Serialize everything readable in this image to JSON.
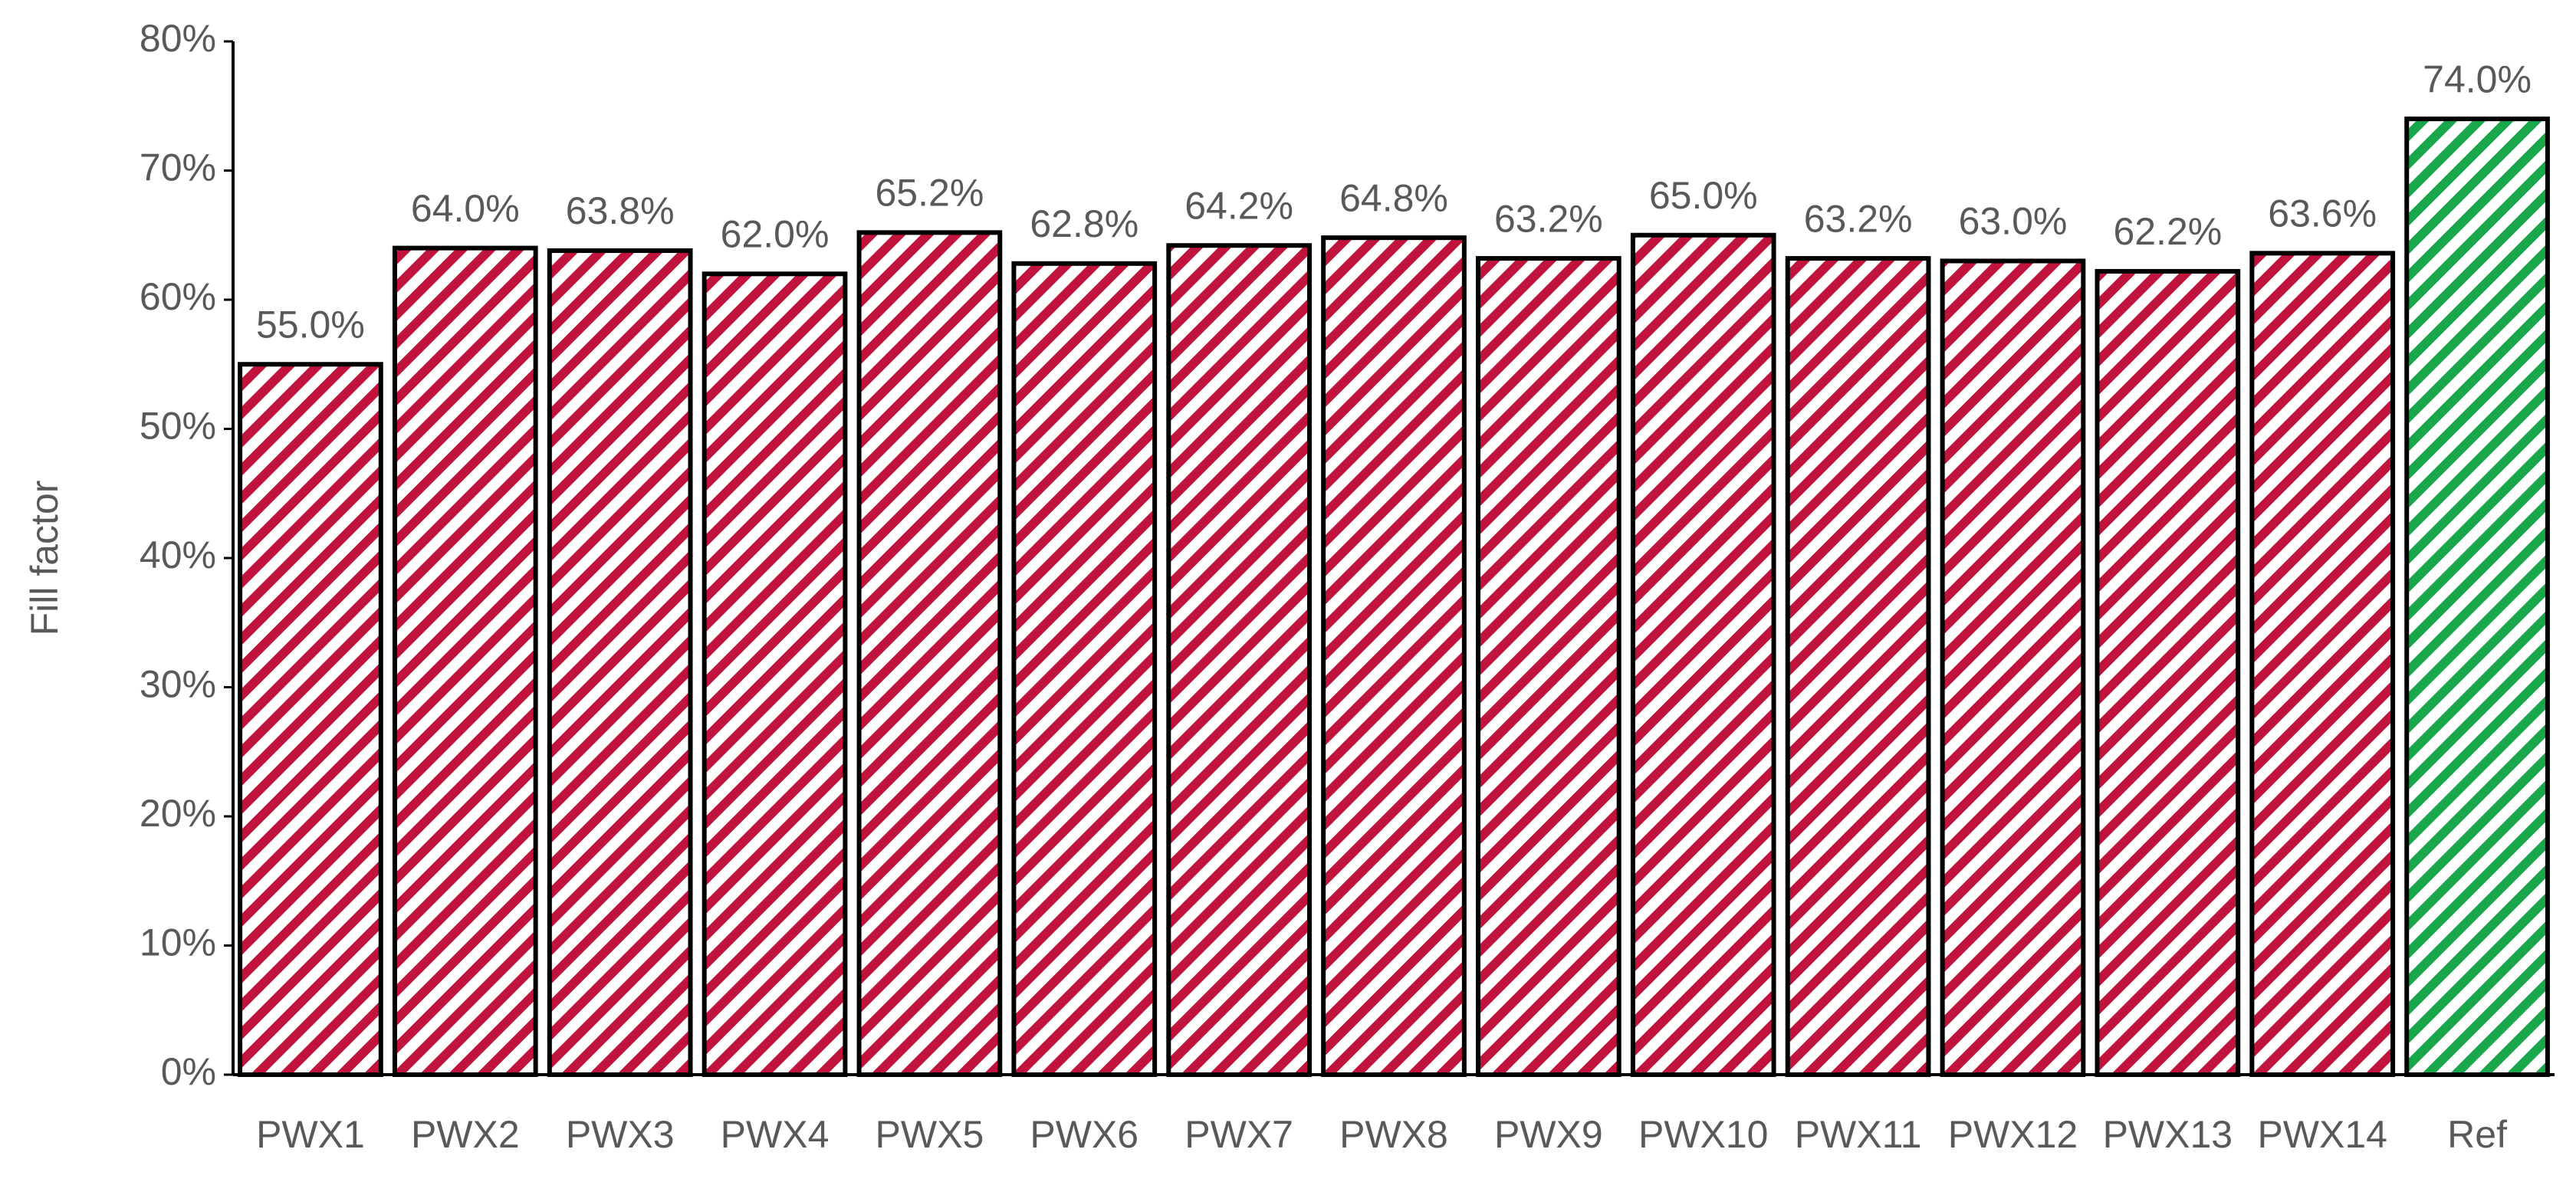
{
  "chart_data": {
    "type": "bar",
    "y_label": "Fill factor",
    "categories": [
      "PWX1",
      "PWX2",
      "PWX3",
      "PWX4",
      "PWX5",
      "PWX6",
      "PWX7",
      "PWX8",
      "PWX9",
      "PWX10",
      "PWX11",
      "PWX12",
      "PWX13",
      "PWX14",
      "Ref"
    ],
    "values": [
      55.0,
      64.0,
      63.8,
      62.0,
      65.2,
      62.8,
      64.2,
      64.8,
      63.2,
      65.0,
      63.2,
      63.0,
      62.2,
      63.6,
      74.0
    ],
    "value_labels": [
      "55.0%",
      "64.0%",
      "63.8%",
      "62.0%",
      "65.2%",
      "62.8%",
      "64.2%",
      "64.8%",
      "63.2%",
      "65.0%",
      "63.2%",
      "63.0%",
      "62.2%",
      "63.6%",
      "74.0%"
    ],
    "colors": [
      "#c0143c",
      "#c0143c",
      "#c0143c",
      "#c0143c",
      "#c0143c",
      "#c0143c",
      "#c0143c",
      "#c0143c",
      "#c0143c",
      "#c0143c",
      "#c0143c",
      "#c0143c",
      "#c0143c",
      "#c0143c",
      "#1aa64b"
    ],
    "ylim": [
      0,
      80
    ],
    "yticks": [
      {
        "value": 0,
        "label": "0%"
      },
      {
        "value": 10,
        "label": "10%"
      },
      {
        "value": 20,
        "label": "20%"
      },
      {
        "value": 30,
        "label": "30%"
      },
      {
        "value": 40,
        "label": "40%"
      },
      {
        "value": 50,
        "label": "50%"
      },
      {
        "value": 60,
        "label": "60%"
      },
      {
        "value": 70,
        "label": "70%"
      },
      {
        "value": 80,
        "label": "80%"
      }
    ],
    "grid": false
  }
}
